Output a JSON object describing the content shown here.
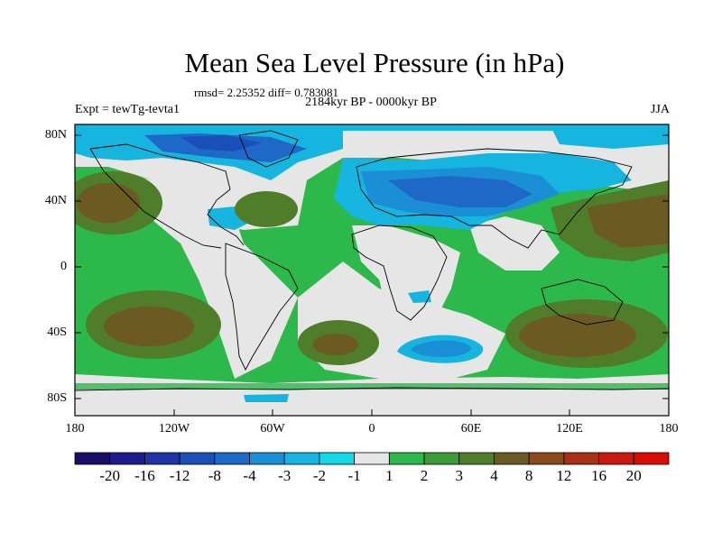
{
  "title": "Mean Sea Level Pressure (in hPa)",
  "stats": "rmsd= 2.25352  diff= 0.783081",
  "period": "2184kyr BP - 0000kyr BP",
  "experiment": "Expt = tewTg-tevta1",
  "season": "JJA",
  "lat_labels": [
    "80N",
    "40N",
    "0",
    "40S",
    "80S"
  ],
  "lon_labels": [
    "180",
    "120W",
    "60W",
    "0",
    "60E",
    "120E",
    "180"
  ],
  "colorbar": {
    "labels": [
      "-20",
      "-16",
      "-12",
      "-8",
      "-4",
      "-3",
      "-2",
      "-1",
      "1",
      "2",
      "3",
      "4",
      "8",
      "12",
      "16",
      "20"
    ],
    "colors": [
      "#1a0f66",
      "#1c1c8c",
      "#1f35a6",
      "#1a4fb8",
      "#1e69c8",
      "#1b8fd6",
      "#16b5e0",
      "#12d8e8",
      "#e6e6e6",
      "#2cb84a",
      "#3c9a38",
      "#4f7d2a",
      "#6b5a22",
      "#8b4a1e",
      "#a93014",
      "#c81a10",
      "#d80c08"
    ]
  },
  "palette": {
    "land_ocean_neutral": "#e6e6e6",
    "green_2": "#2cb84a",
    "olive_3": "#4f7d2a",
    "brown_4": "#6b5a22",
    "cyan_m2": "#16b5e0",
    "blue_m3": "#1b8fd6",
    "blue_m4": "#1e69c8"
  }
}
